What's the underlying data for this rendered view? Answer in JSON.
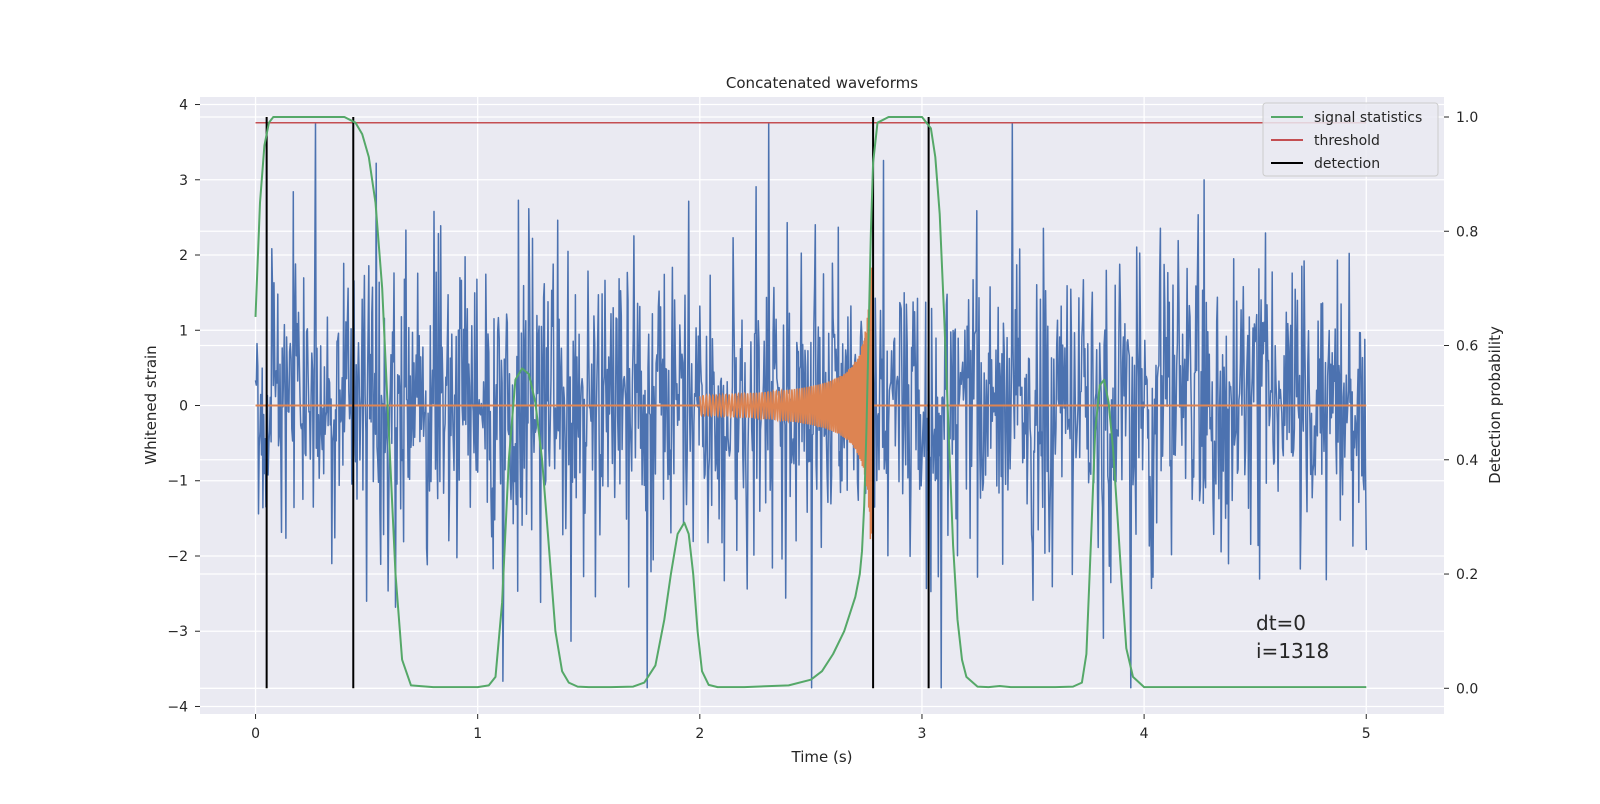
{
  "chart_data": {
    "type": "line",
    "title": "Concatenated waveforms",
    "xlabel": "Time (s)",
    "ylabel": "Whitened strain",
    "y2label": "Detection probability",
    "xlim": [
      -0.25,
      5.35
    ],
    "ylim": [
      -4.1,
      4.1
    ],
    "y2lim": [
      -0.045,
      1.035
    ],
    "xticks": [
      0,
      1,
      2,
      3,
      4,
      5
    ],
    "xtick_labels": [
      "0",
      "1",
      "2",
      "3",
      "4",
      "5"
    ],
    "yticks": [
      -4,
      -3,
      -2,
      -1,
      0,
      1,
      2,
      3,
      4
    ],
    "ytick_labels": [
      "−4",
      "−3",
      "−2",
      "−1",
      "0",
      "1",
      "2",
      "3",
      "4"
    ],
    "y2ticks": [
      0.0,
      0.2,
      0.4,
      0.6,
      0.8,
      1.0
    ],
    "y2tick_labels": [
      "0.0",
      "0.2",
      "0.4",
      "0.6",
      "0.8",
      "1.0"
    ],
    "grid": true,
    "legend_position": "top-right",
    "colors": {
      "strain": "#4c72b0",
      "template": "#dd8452",
      "signal_statistics": "#55a868",
      "threshold": "#c44e52",
      "detection": "#000000",
      "background": "#eaeaf2",
      "grid": "#ffffff"
    },
    "legend": [
      {
        "label": "signal statistics",
        "color": "#55a868"
      },
      {
        "label": "threshold",
        "color": "#c44e52"
      },
      {
        "label": "detection",
        "color": "#000000"
      }
    ],
    "strain_range": [
      0,
      5
    ],
    "template_segments": [
      [
        0,
        2.0
      ],
      [
        2.0,
        2.78
      ],
      [
        2.78,
        5.0
      ]
    ],
    "threshold": {
      "x": [
        0,
        5.0
      ],
      "y": 0.99
    },
    "detection_lines": [
      0.05,
      0.44,
      2.78,
      3.03
    ],
    "signal_statistics": {
      "x": [
        0,
        0.02,
        0.04,
        0.06,
        0.08,
        0.1,
        0.2,
        0.3,
        0.4,
        0.45,
        0.48,
        0.51,
        0.54,
        0.57,
        0.6,
        0.63,
        0.66,
        0.7,
        0.8,
        0.9,
        1.0,
        1.05,
        1.08,
        1.11,
        1.14,
        1.17,
        1.2,
        1.23,
        1.26,
        1.29,
        1.32,
        1.35,
        1.38,
        1.41,
        1.45,
        1.5,
        1.6,
        1.7,
        1.75,
        1.8,
        1.84,
        1.87,
        1.9,
        1.93,
        1.95,
        1.97,
        1.99,
        2.01,
        2.04,
        2.08,
        2.2,
        2.4,
        2.5,
        2.55,
        2.6,
        2.65,
        2.7,
        2.72,
        2.73,
        2.74,
        2.75,
        2.76,
        2.77,
        2.78,
        2.8,
        2.85,
        2.9,
        3.0,
        3.04,
        3.06,
        3.08,
        3.1,
        3.12,
        3.14,
        3.16,
        3.18,
        3.2,
        3.25,
        3.3,
        3.35,
        3.4,
        3.5,
        3.6,
        3.68,
        3.72,
        3.74,
        3.76,
        3.78,
        3.8,
        3.82,
        3.84,
        3.86,
        3.88,
        3.9,
        3.92,
        3.95,
        4.0,
        4.2,
        4.5,
        5.0
      ],
      "y": [
        0.65,
        0.85,
        0.95,
        0.99,
        1.0,
        1.0,
        1.0,
        1.0,
        1.0,
        0.99,
        0.97,
        0.93,
        0.85,
        0.7,
        0.45,
        0.2,
        0.05,
        0.005,
        0.002,
        0.002,
        0.002,
        0.005,
        0.02,
        0.15,
        0.4,
        0.54,
        0.56,
        0.55,
        0.5,
        0.4,
        0.25,
        0.1,
        0.03,
        0.01,
        0.003,
        0.002,
        0.002,
        0.003,
        0.01,
        0.04,
        0.12,
        0.2,
        0.27,
        0.29,
        0.27,
        0.2,
        0.1,
        0.03,
        0.006,
        0.002,
        0.002,
        0.005,
        0.015,
        0.03,
        0.06,
        0.1,
        0.16,
        0.2,
        0.24,
        0.32,
        0.45,
        0.62,
        0.8,
        0.92,
        0.99,
        1.0,
        1.0,
        1.0,
        0.98,
        0.93,
        0.83,
        0.65,
        0.45,
        0.25,
        0.12,
        0.05,
        0.02,
        0.003,
        0.002,
        0.004,
        0.002,
        0.002,
        0.002,
        0.003,
        0.01,
        0.06,
        0.25,
        0.45,
        0.53,
        0.54,
        0.5,
        0.42,
        0.3,
        0.18,
        0.07,
        0.02,
        0.002,
        0.002,
        0.002,
        0.002
      ]
    },
    "annotations": [
      "dt=0",
      "i=1318"
    ]
  }
}
